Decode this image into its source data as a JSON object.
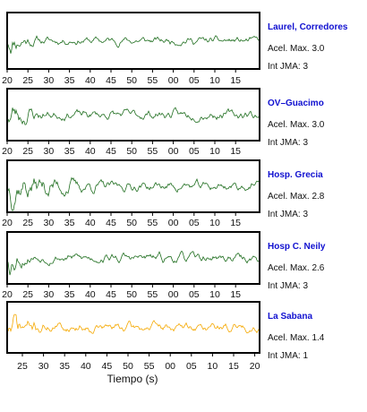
{
  "x_axis_title": "Tiempo (s)",
  "chart_data": [
    {
      "type": "line",
      "station": "Laurel, Corredores",
      "accel_label": "Acel. Max. 3.0",
      "intensity_label": "Int JMA: 3",
      "color": "#1f6e1f",
      "x_ticks": [
        "20",
        "25",
        "30",
        "35",
        "40",
        "45",
        "50",
        "55",
        "00",
        "05",
        "10",
        "15"
      ],
      "signal": {
        "amplitude": 0.75,
        "decay": 0.035,
        "seed": 11,
        "onset": 0.0
      }
    },
    {
      "type": "line",
      "station": "OV–Guacimo",
      "accel_label": "Acel. Max. 3.0",
      "intensity_label": "Int JMA: 3",
      "color": "#1f6e1f",
      "x_ticks": [
        "20",
        "25",
        "30",
        "35",
        "40",
        "45",
        "50",
        "55",
        "00",
        "05",
        "10",
        "15"
      ],
      "signal": {
        "amplitude": 1.0,
        "decay": 0.03,
        "seed": 23,
        "onset": 0.0
      }
    },
    {
      "type": "line",
      "station": "Hosp. Grecia",
      "accel_label": "Acel. Max. 2.8",
      "intensity_label": "Int JMA: 3",
      "color": "#1f6e1f",
      "x_ticks": [
        "20",
        "25",
        "30",
        "35",
        "40",
        "45",
        "50",
        "55",
        "00",
        "05",
        "10",
        "15"
      ],
      "signal": {
        "amplitude": 1.0,
        "decay": 0.012,
        "seed": 37,
        "onset": 0.0
      }
    },
    {
      "type": "line",
      "station": "Hosp C. Neily",
      "accel_label": "Acel. Max. 2.6",
      "intensity_label": "Int JMA: 3",
      "color": "#1f6e1f",
      "x_ticks": [
        "20",
        "25",
        "30",
        "35",
        "40",
        "45",
        "50",
        "55",
        "00",
        "05",
        "10",
        "15"
      ],
      "signal": {
        "amplitude": 1.0,
        "decay": 0.045,
        "seed": 53,
        "onset": 0.0
      }
    },
    {
      "type": "line",
      "station": "La Sabana",
      "accel_label": "Acel. Max. 1.4",
      "intensity_label": "Int JMA: 1",
      "color": "#f5a800",
      "x_ticks": [
        "25",
        "30",
        "35",
        "40",
        "45",
        "50",
        "55",
        "00",
        "05",
        "10",
        "15",
        "20"
      ],
      "signal": {
        "amplitude": 1.0,
        "decay": 0.03,
        "seed": 71,
        "onset": 0.0
      }
    }
  ]
}
